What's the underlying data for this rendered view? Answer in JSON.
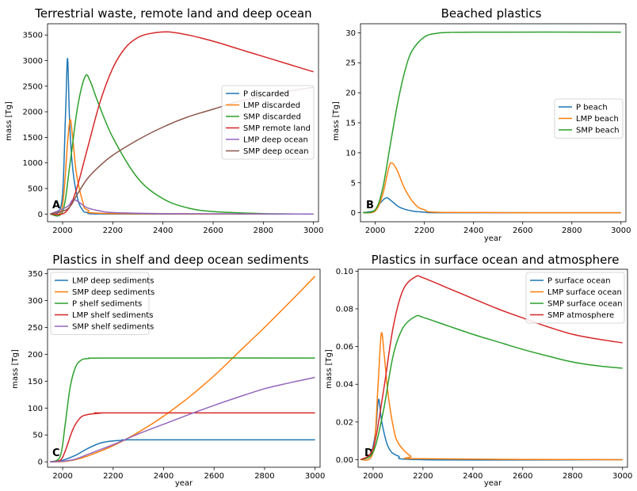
{
  "colors": {
    "c0": "#1f77b4",
    "c1": "#ff7f0e",
    "c2": "#2ca02c",
    "c3": "#d62728",
    "c4": "#9467bd",
    "c5": "#8c564b"
  },
  "chart_data": [
    {
      "type": "line",
      "panel_label": "A",
      "title": "Terrestrial waste, remote land and deep ocean",
      "xlabel": "",
      "ylabel": "mass [Tg]",
      "xlim": [
        1940,
        3020
      ],
      "ylim": [
        -150,
        3720
      ],
      "xticks": [
        2000,
        2200,
        2400,
        2600,
        2800,
        3000
      ],
      "yticks": [
        0,
        500,
        1000,
        1500,
        2000,
        2500,
        3000,
        3500
      ],
      "legend_position": "center-right",
      "series": [
        {
          "name": "P discarded",
          "color": "c0",
          "points": [
            [
              1950,
              0
            ],
            [
              1980,
              20
            ],
            [
              2000,
              400
            ],
            [
              2012,
              2000
            ],
            [
              2020,
              3040
            ],
            [
              2028,
              1800
            ],
            [
              2040,
              900
            ],
            [
              2060,
              300
            ],
            [
              2080,
              80
            ],
            [
              2100,
              30
            ],
            [
              2200,
              0
            ],
            [
              3000,
              0
            ]
          ]
        },
        {
          "name": "LMP discarded",
          "color": "c1",
          "points": [
            [
              1950,
              0
            ],
            [
              1990,
              20
            ],
            [
              2005,
              400
            ],
            [
              2020,
              1400
            ],
            [
              2030,
              1850
            ],
            [
              2040,
              1500
            ],
            [
              2055,
              800
            ],
            [
              2080,
              250
            ],
            [
              2100,
              80
            ],
            [
              2200,
              10
            ],
            [
              3000,
              0
            ]
          ]
        },
        {
          "name": "SMP discarded",
          "color": "c2",
          "points": [
            [
              1950,
              0
            ],
            [
              2000,
              50
            ],
            [
              2030,
              1000
            ],
            [
              2060,
              2100
            ],
            [
              2090,
              2690
            ],
            [
              2110,
              2600
            ],
            [
              2140,
              2200
            ],
            [
              2200,
              1500
            ],
            [
              2300,
              700
            ],
            [
              2400,
              300
            ],
            [
              2500,
              120
            ],
            [
              2600,
              50
            ],
            [
              2800,
              10
            ],
            [
              3000,
              0
            ]
          ]
        },
        {
          "name": "SMP remote land",
          "color": "c3",
          "points": [
            [
              1950,
              0
            ],
            [
              2010,
              30
            ],
            [
              2050,
              400
            ],
            [
              2100,
              1300
            ],
            [
              2150,
              2200
            ],
            [
              2200,
              2850
            ],
            [
              2250,
              3250
            ],
            [
              2300,
              3450
            ],
            [
              2350,
              3530
            ],
            [
              2420,
              3560
            ],
            [
              2500,
              3500
            ],
            [
              2600,
              3380
            ],
            [
              2700,
              3230
            ],
            [
              2800,
              3080
            ],
            [
              2900,
              2930
            ],
            [
              3000,
              2780
            ]
          ]
        },
        {
          "name": "LMP deep ocean",
          "color": "c4",
          "points": [
            [
              1950,
              0
            ],
            [
              2020,
              150
            ],
            [
              2040,
              280
            ],
            [
              2060,
              250
            ],
            [
              2080,
              180
            ],
            [
              2100,
              120
            ],
            [
              2150,
              60
            ],
            [
              2200,
              30
            ],
            [
              2400,
              10
            ],
            [
              3000,
              0
            ]
          ]
        },
        {
          "name": "SMP deep ocean",
          "color": "c5",
          "points": [
            [
              1950,
              0
            ],
            [
              2020,
              100
            ],
            [
              2060,
              400
            ],
            [
              2100,
              700
            ],
            [
              2150,
              950
            ],
            [
              2200,
              1150
            ],
            [
              2300,
              1450
            ],
            [
              2400,
              1700
            ],
            [
              2500,
              1900
            ],
            [
              2600,
              2050
            ],
            [
              2700,
              2200
            ],
            [
              2800,
              2300
            ],
            [
              2900,
              2400
            ],
            [
              3000,
              2480
            ]
          ]
        }
      ]
    },
    {
      "type": "line",
      "panel_label": "B",
      "title": "Beached plastics",
      "xlabel": "year",
      "ylabel": "mass [Tg]",
      "xlim": [
        1940,
        3020
      ],
      "ylim": [
        -1.5,
        31.5
      ],
      "xticks": [
        2000,
        2200,
        2400,
        2600,
        2800,
        3000
      ],
      "yticks": [
        0,
        5,
        10,
        15,
        20,
        25,
        30
      ],
      "legend_position": "center-right",
      "series": [
        {
          "name": "P beach",
          "color": "c0",
          "points": [
            [
              1950,
              0
            ],
            [
              2000,
              0.4
            ],
            [
              2020,
              1.6
            ],
            [
              2045,
              2.5
            ],
            [
              2065,
              2.0
            ],
            [
              2100,
              0.9
            ],
            [
              2150,
              0.3
            ],
            [
              2200,
              0.1
            ],
            [
              2300,
              0
            ],
            [
              3000,
              0
            ]
          ]
        },
        {
          "name": "LMP beach",
          "color": "c1",
          "points": [
            [
              1950,
              0
            ],
            [
              2000,
              0.3
            ],
            [
              2030,
              3.0
            ],
            [
              2055,
              7.5
            ],
            [
              2068,
              8.3
            ],
            [
              2090,
              7.0
            ],
            [
              2120,
              4.0
            ],
            [
              2160,
              1.5
            ],
            [
              2200,
              0.5
            ],
            [
              2300,
              0.05
            ],
            [
              3000,
              0
            ]
          ]
        },
        {
          "name": "SMP beach",
          "color": "c2",
          "points": [
            [
              1950,
              0
            ],
            [
              2000,
              0.5
            ],
            [
              2030,
              4
            ],
            [
              2060,
              11
            ],
            [
              2090,
              18
            ],
            [
              2120,
              23.5
            ],
            [
              2150,
              27
            ],
            [
              2200,
              29.3
            ],
            [
              2250,
              29.9
            ],
            [
              2300,
              30.05
            ],
            [
              2400,
              30.1
            ],
            [
              3000,
              30.1
            ]
          ]
        }
      ]
    },
    {
      "type": "line",
      "panel_label": "C",
      "title": "Plastics in shelf and deep ocean sediments",
      "xlabel": "year",
      "ylabel": "mass [Tg]",
      "xlim": [
        1940,
        3020
      ],
      "ylim": [
        -10,
        358
      ],
      "xticks": [
        2000,
        2200,
        2400,
        2600,
        2800,
        3000
      ],
      "yticks": [
        0,
        50,
        100,
        150,
        200,
        250,
        300,
        350
      ],
      "legend_position": "upper-left",
      "series": [
        {
          "name": "LMP deep sediments",
          "color": "c0",
          "points": [
            [
              1950,
              0
            ],
            [
              2000,
              3
            ],
            [
              2050,
              12
            ],
            [
              2100,
              25
            ],
            [
              2150,
              35
            ],
            [
              2200,
              39
            ],
            [
              2250,
              40.5
            ],
            [
              2300,
              41
            ],
            [
              3000,
              41
            ]
          ]
        },
        {
          "name": "SMP deep sediments",
          "color": "c1",
          "points": [
            [
              1950,
              0
            ],
            [
              2000,
              0.5
            ],
            [
              2050,
              4
            ],
            [
              2100,
              11
            ],
            [
              2200,
              30
            ],
            [
              2300,
              55
            ],
            [
              2400,
              85
            ],
            [
              2500,
              120
            ],
            [
              2600,
              160
            ],
            [
              2700,
              205
            ],
            [
              2800,
              250
            ],
            [
              2900,
              297
            ],
            [
              3000,
              345
            ]
          ]
        },
        {
          "name": "P shelf sediments",
          "color": "c2",
          "points": [
            [
              1950,
              0
            ],
            [
              1990,
              10
            ],
            [
              2010,
              70
            ],
            [
              2030,
              140
            ],
            [
              2050,
              175
            ],
            [
              2070,
              188
            ],
            [
              2100,
              192
            ],
            [
              2200,
              193
            ],
            [
              3000,
              193
            ]
          ]
        },
        {
          "name": "LMP shelf sediments",
          "color": "c3",
          "points": [
            [
              1950,
              0
            ],
            [
              1990,
              3
            ],
            [
              2010,
              20
            ],
            [
              2040,
              60
            ],
            [
              2070,
              82
            ],
            [
              2100,
              88
            ],
            [
              2150,
              90.5
            ],
            [
              2200,
              91
            ],
            [
              3000,
              91
            ]
          ]
        },
        {
          "name": "SMP shelf sediments",
          "color": "c4",
          "points": [
            [
              1950,
              0
            ],
            [
              2000,
              1
            ],
            [
              2050,
              5
            ],
            [
              2100,
              14
            ],
            [
              2200,
              32
            ],
            [
              2300,
              52
            ],
            [
              2400,
              70
            ],
            [
              2500,
              88
            ],
            [
              2600,
              105
            ],
            [
              2700,
              121
            ],
            [
              2800,
              136
            ],
            [
              2900,
              147
            ],
            [
              3000,
              157
            ]
          ]
        }
      ]
    },
    {
      "type": "line",
      "panel_label": "D",
      "title": "Plastics in surface ocean and atmosphere",
      "xlabel": "year",
      "ylabel": "mass [Tg]",
      "xlim": [
        1940,
        3020
      ],
      "ylim": [
        -0.004,
        0.101
      ],
      "xticks": [
        2000,
        2200,
        2400,
        2600,
        2800,
        3000
      ],
      "yticks": [
        0.0,
        0.02,
        0.04,
        0.06,
        0.08,
        0.1
      ],
      "ytick_labels": [
        "0.00",
        "0.02",
        "0.04",
        "0.06",
        "0.08",
        "0.10"
      ],
      "legend_position": "upper-right",
      "series": [
        {
          "name": "P surface ocean",
          "color": "c0",
          "points": [
            [
              1950,
              0
            ],
            [
              1990,
              0.003
            ],
            [
              2010,
              0.015
            ],
            [
              2022,
              0.032
            ],
            [
              2035,
              0.02
            ],
            [
              2060,
              0.007
            ],
            [
              2100,
              0.002
            ],
            [
              2200,
              0
            ],
            [
              3000,
              0
            ]
          ]
        },
        {
          "name": "LMP surface ocean",
          "color": "c1",
          "points": [
            [
              1950,
              0
            ],
            [
              2000,
              0.004
            ],
            [
              2020,
              0.04
            ],
            [
              2033,
              0.067
            ],
            [
              2045,
              0.055
            ],
            [
              2060,
              0.035
            ],
            [
              2080,
              0.018
            ],
            [
              2100,
              0.009
            ],
            [
              2150,
              0.002
            ],
            [
              2200,
              0.0005
            ],
            [
              3000,
              0
            ]
          ]
        },
        {
          "name": "SMP surface ocean",
          "color": "c2",
          "points": [
            [
              1950,
              0
            ],
            [
              2000,
              0.004
            ],
            [
              2040,
              0.025
            ],
            [
              2080,
              0.055
            ],
            [
              2120,
              0.07
            ],
            [
              2170,
              0.076
            ],
            [
              2200,
              0.0755
            ],
            [
              2300,
              0.071
            ],
            [
              2400,
              0.0665
            ],
            [
              2500,
              0.0625
            ],
            [
              2600,
              0.0585
            ],
            [
              2700,
              0.055
            ],
            [
              2800,
              0.0518
            ],
            [
              2900,
              0.0498
            ],
            [
              3000,
              0.0485
            ]
          ]
        },
        {
          "name": "SMP atmosphere",
          "color": "c3",
          "points": [
            [
              1950,
              0
            ],
            [
              2000,
              0.006
            ],
            [
              2040,
              0.035
            ],
            [
              2080,
              0.07
            ],
            [
              2120,
              0.09
            ],
            [
              2170,
              0.097
            ],
            [
              2200,
              0.0965
            ],
            [
              2300,
              0.091
            ],
            [
              2400,
              0.0855
            ],
            [
              2500,
              0.08
            ],
            [
              2600,
              0.0752
            ],
            [
              2700,
              0.0705
            ],
            [
              2800,
              0.0665
            ],
            [
              2900,
              0.064
            ],
            [
              3000,
              0.062
            ]
          ]
        }
      ]
    }
  ]
}
